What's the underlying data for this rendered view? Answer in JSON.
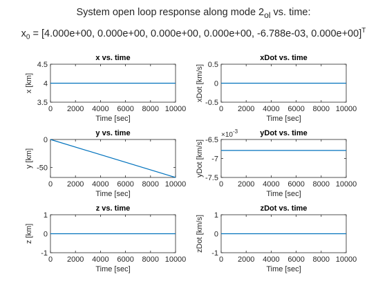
{
  "figure": {
    "title_line1_a": "System open loop response along mode 2",
    "title_line1_sub": "ol",
    "title_line1_b": " vs. time:",
    "title_line2_a": "x",
    "title_line2_sub": "0",
    "title_line2_b": " = [4.000e+00, 0.000e+00, 0.000e+00, 0.000e+00, -6.788e-03, 0.000e+00]",
    "title_line2_sup": "T"
  },
  "colors": {
    "line": "#0072BD",
    "axis": "#262626",
    "grid": "#d9d9d9",
    "background": "#ffffff"
  },
  "chart_data": [
    {
      "type": "line",
      "title": "x vs. time",
      "xlabel": "Time [sec]",
      "ylabel": "x [km]",
      "xlim": [
        0,
        10000
      ],
      "ylim": [
        3.5,
        4.5
      ],
      "xticks": [
        "0",
        "2000",
        "4000",
        "6000",
        "8000",
        "10000"
      ],
      "yticks": [
        "3.5",
        "4",
        "4.5"
      ],
      "exponent_label": "",
      "series": [
        {
          "x": [
            0,
            10000
          ],
          "y": [
            4,
            4
          ]
        }
      ]
    },
    {
      "type": "line",
      "title": "xDot vs. time",
      "xlabel": "Time [sec]",
      "ylabel": "xDot [km/s]",
      "xlim": [
        0,
        10000
      ],
      "ylim": [
        -0.5,
        0.5
      ],
      "xticks": [
        "0",
        "2000",
        "4000",
        "6000",
        "8000",
        "10000"
      ],
      "yticks": [
        "-0.5",
        "0",
        "0.5"
      ],
      "exponent_label": "",
      "series": [
        {
          "x": [
            0,
            10000
          ],
          "y": [
            0,
            0
          ]
        }
      ]
    },
    {
      "type": "line",
      "title": "y vs. time",
      "xlabel": "Time [sec]",
      "ylabel": "y [km]",
      "xlim": [
        0,
        10000
      ],
      "ylim": [
        -67.88,
        0
      ],
      "xticks": [
        "0",
        "2000",
        "4000",
        "6000",
        "8000",
        "10000"
      ],
      "yticks": [
        "-50",
        "0"
      ],
      "ytick_values": [
        -50,
        0
      ],
      "exponent_label": "",
      "series": [
        {
          "x": [
            0,
            10000
          ],
          "y": [
            0,
            -67.88
          ]
        }
      ]
    },
    {
      "type": "line",
      "title": "yDot vs. time",
      "xlabel": "Time [sec]",
      "ylabel": "yDot [km/s]",
      "xlim": [
        0,
        10000
      ],
      "ylim": [
        -0.0075,
        -0.0065
      ],
      "xticks": [
        "0",
        "2000",
        "4000",
        "6000",
        "8000",
        "10000"
      ],
      "yticks": [
        "-7.5",
        "-7",
        "-6.5"
      ],
      "ytick_values": [
        -0.0075,
        -0.007,
        -0.0065
      ],
      "exponent_label": "×10",
      "exponent_sup": "-3",
      "series": [
        {
          "x": [
            0,
            10000
          ],
          "y": [
            -0.006788,
            -0.006788
          ]
        }
      ]
    },
    {
      "type": "line",
      "title": "z vs. time",
      "xlabel": "Time [sec]",
      "ylabel": "z [km]",
      "xlim": [
        0,
        10000
      ],
      "ylim": [
        -1,
        1
      ],
      "xticks": [
        "0",
        "2000",
        "4000",
        "6000",
        "8000",
        "10000"
      ],
      "yticks": [
        "-1",
        "0",
        "1"
      ],
      "exponent_label": "",
      "series": [
        {
          "x": [
            0,
            10000
          ],
          "y": [
            0,
            0
          ]
        }
      ]
    },
    {
      "type": "line",
      "title": "zDot vs. time",
      "xlabel": "Time [sec]",
      "ylabel": "zDot [km/s]",
      "xlim": [
        0,
        10000
      ],
      "ylim": [
        -1,
        1
      ],
      "xticks": [
        "0",
        "2000",
        "4000",
        "6000",
        "8000",
        "10000"
      ],
      "yticks": [
        "-1",
        "0",
        "1"
      ],
      "exponent_label": "",
      "series": [
        {
          "x": [
            0,
            10000
          ],
          "y": [
            0,
            0
          ]
        }
      ]
    }
  ]
}
